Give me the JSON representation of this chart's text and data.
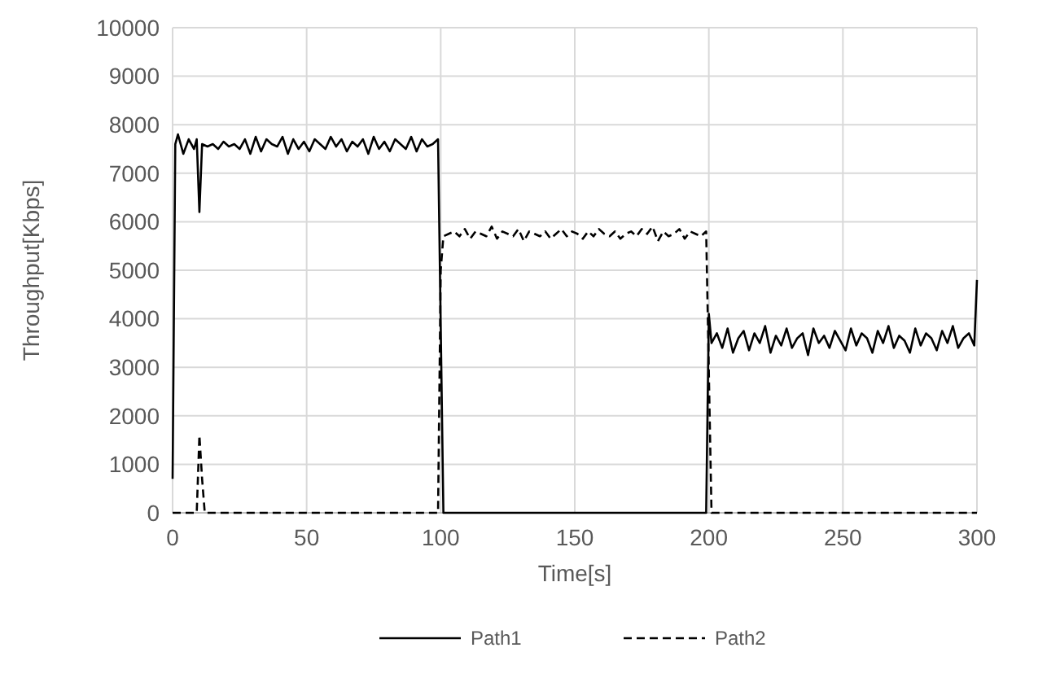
{
  "chart_data": {
    "type": "line",
    "xlabel": "Time[s]",
    "ylabel": "Throughput[Kbps]",
    "xlim": [
      0,
      300
    ],
    "xticks": [
      0,
      50,
      100,
      150,
      200,
      250,
      300
    ],
    "ylim": [
      0,
      10000
    ],
    "yticks": [
      0,
      1000,
      2000,
      3000,
      4000,
      5000,
      6000,
      7000,
      8000,
      9000,
      10000
    ],
    "grid": true,
    "legend": "bottom",
    "series": [
      {
        "name": "Path1",
        "color": "#000000",
        "line_style": "solid",
        "x": [
          0,
          1,
          2,
          4,
          6,
          8,
          9,
          10,
          11,
          13,
          15,
          17,
          19,
          21,
          23,
          25,
          27,
          29,
          31,
          33,
          35,
          37,
          39,
          41,
          43,
          45,
          47,
          49,
          51,
          53,
          55,
          57,
          59,
          61,
          63,
          65,
          67,
          69,
          71,
          73,
          75,
          77,
          79,
          81,
          83,
          85,
          87,
          89,
          91,
          93,
          95,
          97,
          99,
          101,
          199,
          200,
          201,
          203,
          205,
          207,
          209,
          211,
          213,
          215,
          217,
          219,
          221,
          223,
          225,
          227,
          229,
          231,
          233,
          235,
          237,
          239,
          241,
          243,
          245,
          247,
          249,
          251,
          253,
          255,
          257,
          259,
          261,
          263,
          265,
          267,
          269,
          271,
          273,
          275,
          277,
          279,
          281,
          283,
          285,
          287,
          289,
          291,
          293,
          295,
          297,
          299,
          300
        ],
        "values": [
          700,
          7600,
          7800,
          7400,
          7700,
          7500,
          7700,
          6200,
          7600,
          7550,
          7600,
          7500,
          7650,
          7550,
          7600,
          7500,
          7700,
          7400,
          7750,
          7450,
          7700,
          7600,
          7550,
          7750,
          7400,
          7700,
          7500,
          7650,
          7450,
          7700,
          7600,
          7500,
          7750,
          7550,
          7700,
          7450,
          7650,
          7550,
          7700,
          7400,
          7750,
          7500,
          7650,
          7450,
          7700,
          7600,
          7500,
          7750,
          7450,
          7700,
          7550,
          7600,
          7700,
          0,
          0,
          4100,
          3500,
          3700,
          3400,
          3800,
          3300,
          3600,
          3750,
          3350,
          3700,
          3500,
          3850,
          3300,
          3650,
          3450,
          3800,
          3400,
          3600,
          3700,
          3250,
          3800,
          3500,
          3650,
          3400,
          3750,
          3550,
          3350,
          3800,
          3450,
          3700,
          3600,
          3300,
          3750,
          3500,
          3850,
          3400,
          3650,
          3550,
          3300,
          3800,
          3450,
          3700,
          3600,
          3350,
          3750,
          3500,
          3850,
          3400,
          3600,
          3700,
          3450,
          4800
        ]
      },
      {
        "name": "Path2",
        "color": "#000000",
        "line_style": "dashed",
        "x": [
          0,
          9,
          10,
          11,
          12,
          99,
          100,
          101,
          103,
          105,
          107,
          109,
          111,
          113,
          115,
          117,
          119,
          121,
          123,
          125,
          127,
          129,
          131,
          133,
          135,
          137,
          139,
          141,
          143,
          145,
          147,
          149,
          151,
          153,
          155,
          157,
          159,
          161,
          163,
          165,
          167,
          169,
          171,
          173,
          175,
          177,
          179,
          181,
          183,
          185,
          187,
          189,
          191,
          193,
          195,
          197,
          199,
          201,
          300
        ],
        "values": [
          0,
          0,
          1600,
          700,
          0,
          0,
          5000,
          5700,
          5750,
          5800,
          5700,
          5850,
          5650,
          5800,
          5750,
          5700,
          5900,
          5650,
          5800,
          5750,
          5700,
          5850,
          5600,
          5800,
          5750,
          5700,
          5800,
          5650,
          5750,
          5850,
          5700,
          5800,
          5750,
          5650,
          5800,
          5700,
          5850,
          5750,
          5700,
          5800,
          5650,
          5750,
          5800,
          5700,
          5850,
          5750,
          5900,
          5600,
          5800,
          5700,
          5750,
          5850,
          5650,
          5800,
          5750,
          5700,
          5800,
          0,
          0
        ]
      }
    ]
  }
}
